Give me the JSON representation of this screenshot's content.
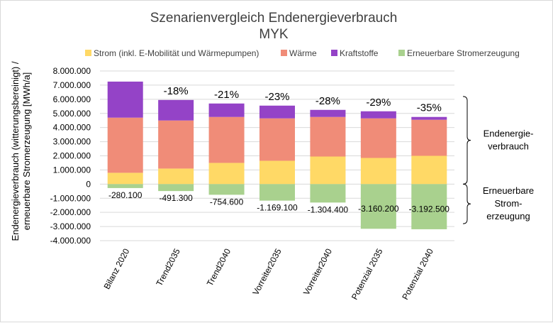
{
  "chart_data": {
    "type": "bar",
    "stacked": true,
    "title": "Szenarienvergleich Endenergieverbrauch",
    "subtitle": "MYK",
    "ylabel_lines": [
      "Endenergieverbrauch (witterungsbereinigt) /",
      "erneuerbare Stromerzeugung [MWh/a]"
    ],
    "xlabel": "",
    "ylim": [
      -4000000,
      8000000
    ],
    "yticks": [
      8000000,
      7000000,
      6000000,
      5000000,
      4000000,
      3000000,
      2000000,
      1000000,
      0,
      -1000000,
      -2000000,
      -3000000,
      -4000000
    ],
    "ytick_labels": [
      "8.000.000",
      "7.000.000",
      "6.000.000",
      "5.000.000",
      "4.000.000",
      "3.000.000",
      "2.000.000",
      "1.000.000",
      "0",
      "-1.000.000",
      "-2.000.000",
      "-3.000.000",
      "-4.000.000"
    ],
    "grid": true,
    "legend_position": "top",
    "categories": [
      "Bilanz 2020",
      "Trend2035",
      "Trend2040",
      "Vorreiter2035",
      "Vorreiter2040",
      "Potenzial 2035",
      "Potenzial 2040"
    ],
    "series": [
      {
        "name": "Strom (inkl. E-Mobilität und Wärmepumpen)",
        "color": "#ffd966",
        "values": [
          800000,
          1100000,
          1500000,
          1650000,
          1950000,
          1850000,
          2000000
        ]
      },
      {
        "name": "Wärme",
        "color": "#f08c78",
        "values": [
          3900000,
          3400000,
          3250000,
          3000000,
          2800000,
          2800000,
          2550000
        ]
      },
      {
        "name": "Kraftstoffe",
        "color": "#9443c7",
        "values": [
          2550000,
          1450000,
          950000,
          900000,
          500000,
          500000,
          200000
        ]
      },
      {
        "name": "Erneuerbare Stromerzeugung",
        "color": "#a9d18e",
        "values": [
          -280100,
          -491300,
          -754600,
          -1169100,
          -1304400,
          -3160200,
          -3192500
        ]
      }
    ],
    "bar_labels": [
      "",
      "-18%",
      "-21%",
      "-23%",
      "-28%",
      "-29%",
      "-35%"
    ],
    "negative_labels": [
      "-280.100",
      "-491.300",
      "-754.600",
      "-1.169.100",
      "-1.304.400",
      "-3.160.200",
      "-3.192.500"
    ],
    "annotations": [
      {
        "lines": [
          "Endenergie-",
          "verbrauch"
        ],
        "range": [
          0,
          6200000
        ]
      },
      {
        "lines": [
          "Erneuerbare",
          "Strom-",
          "erzeugung"
        ],
        "range": [
          -2800000,
          0
        ]
      }
    ]
  }
}
